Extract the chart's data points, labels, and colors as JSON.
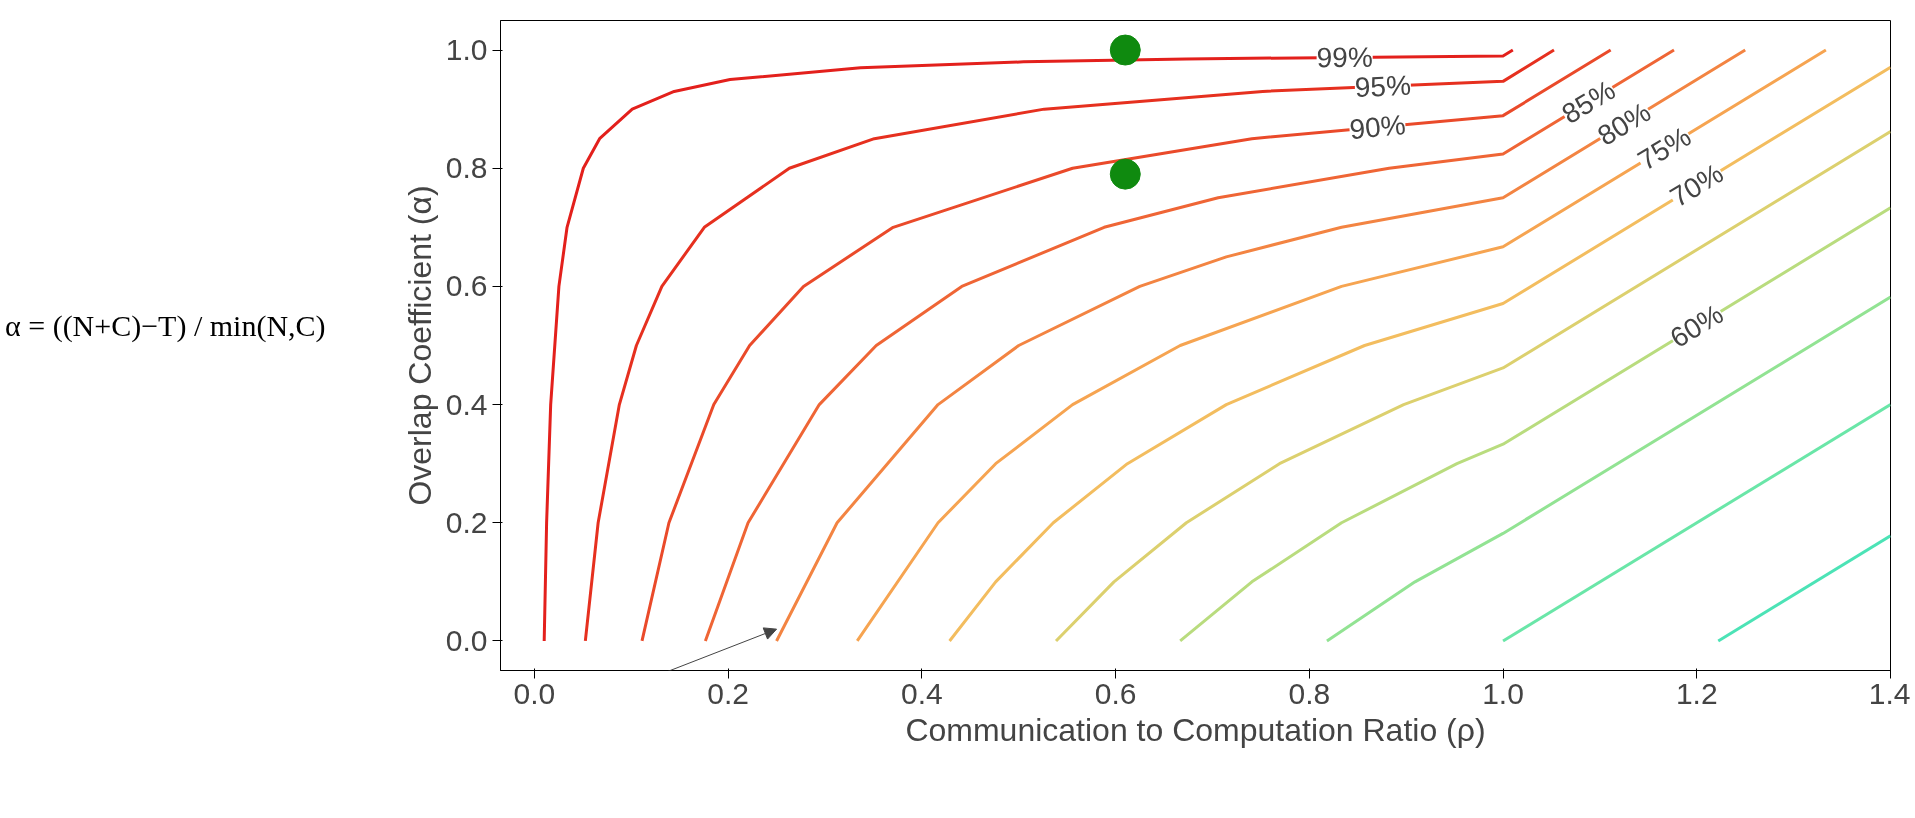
{
  "chart_data": {
    "type": "line",
    "xlabel": "Communication to Computation Ratio (ρ)",
    "ylabel": "Overlap Coefficient (α)",
    "annotations": [
      "α = ((N+C)−T) / min(N,C)"
    ],
    "xlim": [
      -0.035,
      1.4
    ],
    "ylim": [
      -0.05,
      1.05
    ],
    "xticks": [
      {
        "value": 0,
        "label": "0.0"
      },
      0.2,
      0.4,
      0.6,
      0.8,
      {
        "value": 1,
        "label": "1.0"
      },
      1.2,
      1.4
    ],
    "yticks": [
      {
        "value": 0,
        "label": "0.0"
      },
      0.2,
      0.4,
      0.6,
      0.8,
      {
        "value": 1,
        "label": "1.0"
      }
    ],
    "grid": false,
    "series": [
      {
        "name": "99%",
        "color": "#e3201c",
        "x": [
          0.0101,
          0.0126,
          0.0168,
          0.0253,
          0.0337,
          0.0505,
          0.0673,
          0.101,
          0.1443,
          0.202,
          0.3367,
          0.505,
          0.673,
          1.0,
          1.0101
        ],
        "values": [
          0.0,
          0.2,
          0.4,
          0.6,
          0.7,
          0.8,
          0.85,
          0.9,
          0.93,
          0.95,
          0.97,
          0.98,
          0.985,
          0.99,
          1.0
        ]
      },
      {
        "name": "95%",
        "color": "#e6301f",
        "x": [
          0.0526,
          0.0658,
          0.0877,
          0.1053,
          0.1316,
          0.1754,
          0.2632,
          0.3509,
          0.5263,
          0.7519,
          1.0,
          1.0526
        ],
        "values": [
          0.0,
          0.2,
          0.4,
          0.5,
          0.6,
          0.7,
          0.8,
          0.85,
          0.9,
          0.93,
          0.947,
          1.0
        ]
      },
      {
        "name": "90%",
        "color": "#ea4a2a",
        "x": [
          0.1111,
          0.1389,
          0.1852,
          0.2222,
          0.2778,
          0.3704,
          0.5556,
          0.7407,
          1.0,
          1.1111
        ],
        "values": [
          0.0,
          0.2,
          0.4,
          0.5,
          0.6,
          0.7,
          0.8,
          0.85,
          0.889,
          1.0
        ]
      },
      {
        "name": "85%",
        "color": "#ef6535",
        "x": [
          0.1765,
          0.2206,
          0.2941,
          0.3529,
          0.4412,
          0.5882,
          0.7059,
          0.8824,
          1.0,
          1.1765
        ],
        "values": [
          0.0,
          0.2,
          0.4,
          0.5,
          0.6,
          0.7,
          0.75,
          0.8,
          0.824,
          1.0
        ]
      },
      {
        "name": "80%",
        "color": "#f38442",
        "x": [
          0.25,
          0.3125,
          0.4167,
          0.5,
          0.625,
          0.7143,
          0.8333,
          1.0,
          1.25
        ],
        "values": [
          0.0,
          0.2,
          0.4,
          0.5,
          0.6,
          0.65,
          0.7,
          0.75,
          1.0
        ]
      },
      {
        "name": "75%",
        "color": "#f6a451",
        "x": [
          0.3333,
          0.4167,
          0.4762,
          0.5556,
          0.6667,
          0.8333,
          1.0,
          1.3333
        ],
        "values": [
          0.0,
          0.2,
          0.3,
          0.4,
          0.5,
          0.6,
          0.667,
          1.0
        ]
      },
      {
        "name": "70%",
        "color": "#f3bd5f",
        "x": [
          0.4286,
          0.4762,
          0.5357,
          0.6122,
          0.7143,
          0.8571,
          1.0,
          1.4
        ],
        "values": [
          0.0,
          0.1,
          0.2,
          0.3,
          0.4,
          0.5,
          0.571,
          0.971
        ]
      },
      {
        "color": "#dcd06e",
        "x": [
          0.5385,
          0.5983,
          0.6731,
          0.7692,
          0.8974,
          1.0,
          1.4
        ],
        "values": [
          0.0,
          0.1,
          0.2,
          0.3,
          0.4,
          0.462,
          0.862
        ]
      },
      {
        "name": "60%",
        "color": "#b9dc7e",
        "x": [
          0.6667,
          0.7407,
          0.8333,
          0.9524,
          1.0,
          1.4
        ],
        "values": [
          0.0,
          0.1,
          0.2,
          0.3,
          0.333,
          0.733
        ]
      },
      {
        "color": "#92e393",
        "x": [
          0.8182,
          0.9091,
          1.0,
          1.4
        ],
        "values": [
          0.0,
          0.1,
          0.182,
          0.582
        ]
      },
      {
        "color": "#6ae6a8",
        "x": [
          1.0,
          1.4
        ],
        "values": [
          0.0,
          0.4
        ]
      },
      {
        "color": "#4ce3b6",
        "x": [
          1.2222,
          1.4
        ],
        "values": [
          0.0,
          0.178
        ]
      },
      {
        "type": "scatter",
        "marker": "circle",
        "color": "#0f8a0f",
        "x": [
          0.61,
          0.61
        ],
        "values": [
          1.0,
          0.79
        ]
      }
    ]
  }
}
